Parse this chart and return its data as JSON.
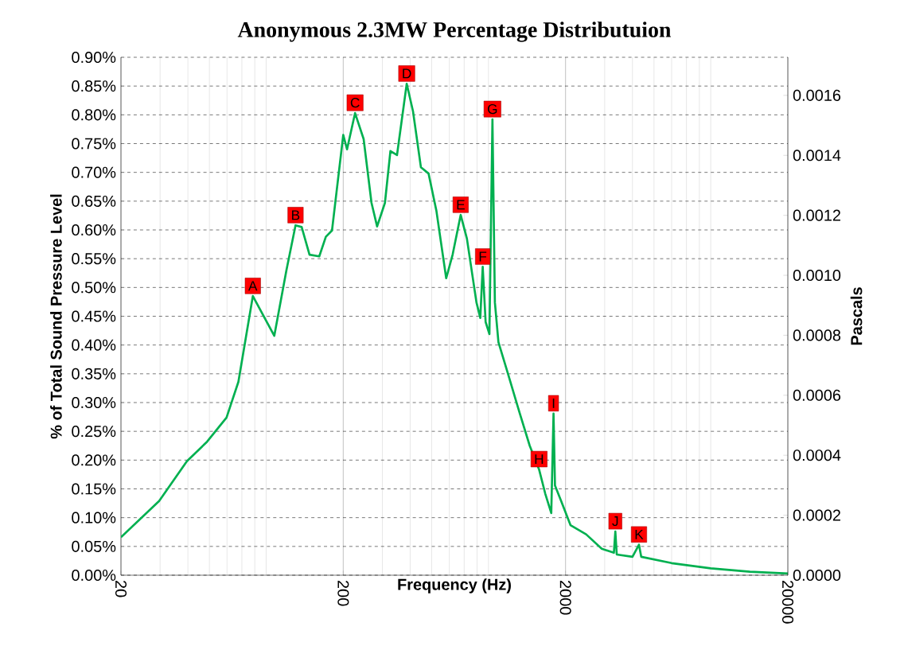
{
  "chart_data": {
    "type": "line",
    "title": "Anonymous 2.3MW Percentage Distributuion",
    "xlabel": "Frequency (Hz)",
    "ylabel": "% of Total Sound Pressure Level",
    "y2label": "Pascals",
    "log": "x",
    "grid": true,
    "marker": "none",
    "line_style": "solid",
    "xlim": [
      20,
      20000
    ],
    "xticks": [
      20,
      200,
      2000,
      20000
    ],
    "ylim": [
      0,
      0.9
    ],
    "yticks": [
      {
        "value": 0,
        "label": "0.00%"
      },
      {
        "value": 0.05,
        "label": "0.05%"
      },
      {
        "value": 0.1,
        "label": "0.10%"
      },
      {
        "value": 0.15,
        "label": "0.15%"
      },
      {
        "value": 0.2,
        "label": "0.20%"
      },
      {
        "value": 0.25,
        "label": "0.25%"
      },
      {
        "value": 0.3,
        "label": "0.30%"
      },
      {
        "value": 0.35,
        "label": "0.35%"
      },
      {
        "value": 0.4,
        "label": "0.40%"
      },
      {
        "value": 0.45,
        "label": "0.45%"
      },
      {
        "value": 0.5,
        "label": "0.50%"
      },
      {
        "value": 0.55,
        "label": "0.55%"
      },
      {
        "value": 0.6,
        "label": "0.60%"
      },
      {
        "value": 0.65,
        "label": "0.65%"
      },
      {
        "value": 0.7,
        "label": "0.70%"
      },
      {
        "value": 0.75,
        "label": "0.75%"
      },
      {
        "value": 0.8,
        "label": "0.80%"
      },
      {
        "value": 0.85,
        "label": "0.85%"
      },
      {
        "value": 0.9,
        "label": "0.90%"
      }
    ],
    "y2lim": [
      0,
      0.001727
    ],
    "y2ticks": [
      {
        "value": 0,
        "label": "0.0000"
      },
      {
        "value": 0.0002,
        "label": "0.0002"
      },
      {
        "value": 0.0004,
        "label": "0.0004"
      },
      {
        "value": 0.0006,
        "label": "0.0006"
      },
      {
        "value": 0.0008,
        "label": "0.0008"
      },
      {
        "value": 0.001,
        "label": "0.0010"
      },
      {
        "value": 0.0012,
        "label": "0.0012"
      },
      {
        "value": 0.0014,
        "label": "0.0014"
      },
      {
        "value": 0.0016,
        "label": "0.0016"
      }
    ],
    "x": [
      20,
      29.7,
      39.6,
      48.8,
      59.7,
      67.5,
      78.4,
      97.9,
      111,
      122,
      130,
      141,
      156,
      167,
      178,
      200,
      208,
      226,
      247,
      268,
      284,
      308,
      326,
      349,
      386,
      412,
      447,
      484,
      525,
      581,
      621,
      675,
      720,
      795,
      827,
      848,
      874,
      909,
      938,
      962,
      998,
      1102,
      1245,
      1380,
      1520,
      1620,
      1725,
      1766,
      1793,
      1911,
      2105,
      2475,
      2910,
      3300,
      3350,
      3400,
      4000,
      4280,
      4380,
      6000,
      9000,
      13500,
      20000
    ],
    "series": [
      {
        "color": "#00b050",
        "values": [
          0.066,
          0.129,
          0.198,
          0.232,
          0.274,
          0.336,
          0.485,
          0.416,
          0.53,
          0.608,
          0.605,
          0.557,
          0.554,
          0.588,
          0.599,
          0.765,
          0.74,
          0.803,
          0.758,
          0.647,
          0.606,
          0.647,
          0.737,
          0.73,
          0.854,
          0.806,
          0.709,
          0.698,
          0.633,
          0.516,
          0.557,
          0.626,
          0.585,
          0.474,
          0.447,
          0.536,
          0.44,
          0.419,
          0.792,
          0.474,
          0.405,
          0.35,
          0.281,
          0.225,
          0.184,
          0.142,
          0.108,
          0.281,
          0.156,
          0.129,
          0.087,
          0.071,
          0.046,
          0.039,
          0.076,
          0.036,
          0.032,
          0.053,
          0.032,
          0.021,
          0.012,
          0.006,
          0.003
        ]
      }
    ],
    "annotations": [
      {
        "text": "A",
        "x": 78.4,
        "y": 0.485
      },
      {
        "text": "B",
        "x": 122,
        "y": 0.608
      },
      {
        "text": "C",
        "x": 226,
        "y": 0.803
      },
      {
        "text": "D",
        "x": 386,
        "y": 0.854
      },
      {
        "text": "E",
        "x": 675,
        "y": 0.626
      },
      {
        "text": "F",
        "x": 848,
        "y": 0.536
      },
      {
        "text": "G",
        "x": 938,
        "y": 0.792
      },
      {
        "text": "H",
        "x": 1520,
        "y": 0.184
      },
      {
        "text": "I",
        "x": 1766,
        "y": 0.281
      },
      {
        "text": "J",
        "x": 3350,
        "y": 0.076
      },
      {
        "text": "K",
        "x": 4280,
        "y": 0.053
      }
    ]
  }
}
